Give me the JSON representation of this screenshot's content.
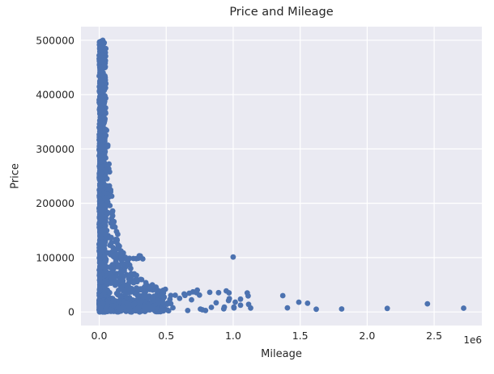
{
  "chart_data": {
    "type": "scatter",
    "title": "Price and Mileage",
    "xlabel": "Mileage",
    "ylabel": "Price",
    "x_axis_multiplier_label": "1e6",
    "legend": "none",
    "grid": true,
    "xlim": [
      -136000,
      2856000
    ],
    "ylim": [
      -25000,
      525000
    ],
    "x_ticks": [
      0,
      500000,
      1000000,
      1500000,
      2000000,
      2500000
    ],
    "x_tick_labels": [
      "0.0",
      "0.5",
      "1.0",
      "1.5",
      "2.0",
      "2.5"
    ],
    "y_ticks": [
      0,
      100000,
      200000,
      300000,
      400000,
      500000
    ],
    "y_tick_labels": [
      "0",
      "100000",
      "200000",
      "300000",
      "400000",
      "500000"
    ],
    "style": {
      "marker_color": "#4c72b0",
      "marker_radius_px": 3.4,
      "plot_background": "#eaeaf2",
      "grid_color": "#ffffff",
      "grid_width": 1.2,
      "text_color": "#262626",
      "figure_background": "#ffffff"
    },
    "seed": 42,
    "point_clusters": [
      {
        "kind": "column",
        "n": 650,
        "x_min": 0,
        "x_max": 50000,
        "x_pow": 1.4,
        "y_min": 0,
        "y_max": 500000,
        "y_pow": 1.5,
        "note": "dense vertical column of low-mileage cars spanning full price range 0-500000"
      },
      {
        "kind": "decay",
        "n": 800,
        "x_min": 5000,
        "x_max": 485000,
        "x_pow": 3.5,
        "coef": 20000000000,
        "y_cap": 500000,
        "y_pow": 1.3,
        "note": "price upper envelope falls roughly as 2e10/mileage out to ~0.5e6 miles"
      },
      {
        "kind": "range",
        "n": 280,
        "x_min": 0,
        "x_max": 520000,
        "x_pow": 1.8,
        "y_min": 500,
        "y_max": 22000,
        "y_pow": 1.0,
        "note": "dense low-price strip along the x axis"
      },
      {
        "kind": "band",
        "n": 13,
        "x_min": 160000,
        "x_max": 330000,
        "y_center": 100000,
        "y_jitter": 4500,
        "note": "horizontal streak of points near price 100000"
      },
      {
        "kind": "range",
        "n": 30,
        "x_min": 430000,
        "x_max": 1150000,
        "x_pow": 1.0,
        "y_min": 2000,
        "y_max": 42000,
        "y_pow": 1.6,
        "note": "sparse mid-mileage low-price tail"
      }
    ],
    "notable_points": [
      [
        100000,
        157000
      ],
      [
        600000,
        25000
      ],
      [
        640000,
        30500
      ],
      [
        672000,
        34500
      ],
      [
        700000,
        37000
      ],
      [
        726000,
        35500
      ],
      [
        748000,
        31000
      ],
      [
        965000,
        21000
      ],
      [
        1000000,
        101000
      ],
      [
        1005000,
        9000
      ],
      [
        1055000,
        12500
      ],
      [
        1115000,
        14000
      ],
      [
        1370000,
        30000
      ],
      [
        1405000,
        7500
      ],
      [
        1490000,
        18000
      ],
      [
        1555000,
        16000
      ],
      [
        1620000,
        5000
      ],
      [
        1810000,
        5500
      ],
      [
        2150000,
        6500
      ],
      [
        2450000,
        15000
      ],
      [
        2720000,
        7000
      ]
    ]
  }
}
